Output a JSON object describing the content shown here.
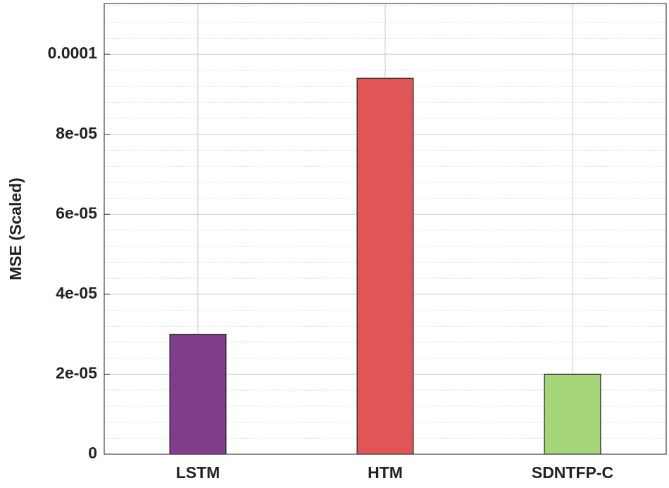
{
  "chart_data": {
    "type": "bar",
    "y_label": "MSE (Scaled)",
    "categories": [
      "LSTM",
      "HTM",
      "SDNTFP-C"
    ],
    "values": [
      3e-05,
      9.4e-05,
      2e-05
    ],
    "colors": [
      "#7f3d8b",
      "#e05656",
      "#a6d479"
    ],
    "ylim": [
      0,
      0.0001127
    ],
    "yticks": [
      0,
      {
        "value": 2e-05,
        "label": "2e-05"
      },
      {
        "value": 4e-05,
        "label": "4e-05"
      },
      {
        "value": 6e-05,
        "label": "6e-05"
      },
      {
        "value": 8e-05,
        "label": "8e-05"
      },
      0.0001
    ],
    "yminorticks": [
      4e-06,
      8e-06,
      1.2e-05,
      1.6e-05,
      2.4e-05,
      2.8e-05,
      3.2e-05,
      3.6e-05,
      4.4e-05,
      4.8e-05,
      5.2e-05,
      5.6e-05,
      6.4e-05,
      6.8e-05,
      7.2e-05,
      7.6e-05,
      8.4e-05,
      8.8e-05,
      9.2e-05,
      9.6e-05,
      0.000104,
      0.000108,
      0.000112
    ],
    "grid": true,
    "minor_grid": true
  }
}
